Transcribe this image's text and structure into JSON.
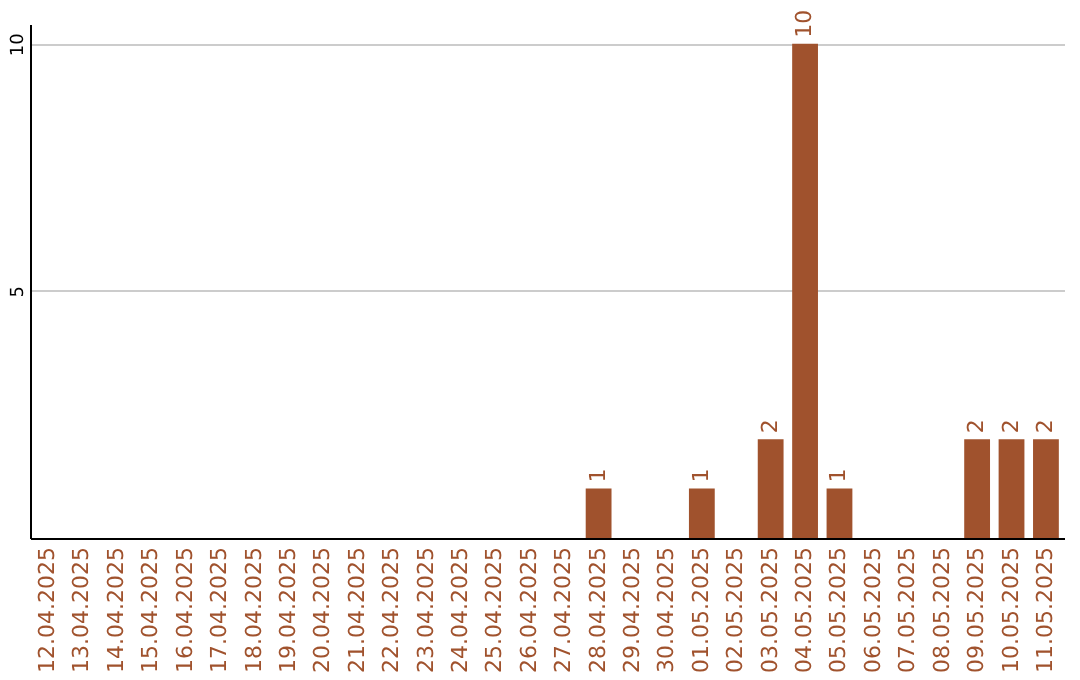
{
  "chart_data": {
    "type": "bar",
    "categories": [
      "12.04.2025",
      "13.04.2025",
      "14.04.2025",
      "15.04.2025",
      "16.04.2025",
      "17.04.2025",
      "18.04.2025",
      "19.04.2025",
      "20.04.2025",
      "21.04.2025",
      "22.04.2025",
      "23.04.2025",
      "24.04.2025",
      "25.04.2025",
      "26.04.2025",
      "27.04.2025",
      "28.04.2025",
      "29.04.2025",
      "30.04.2025",
      "01.05.2025",
      "02.05.2025",
      "03.05.2025",
      "04.05.2025",
      "05.05.2025",
      "06.05.2025",
      "07.05.2025",
      "08.05.2025",
      "09.05.2025",
      "10.05.2025",
      "11.05.2025"
    ],
    "values": [
      0,
      0,
      0,
      0,
      0,
      0,
      0,
      0,
      0,
      0,
      0,
      0,
      0,
      0,
      0,
      0,
      1,
      0,
      0,
      1,
      0,
      2,
      10,
      1,
      0,
      0,
      0,
      2,
      2,
      2
    ],
    "value_labels": [
      null,
      null,
      null,
      null,
      null,
      null,
      null,
      null,
      null,
      null,
      null,
      null,
      null,
      null,
      null,
      null,
      "1",
      null,
      null,
      "1",
      null,
      "2",
      "10",
      "1",
      null,
      null,
      null,
      "2",
      "2",
      "2"
    ],
    "color": "#a0522d",
    "ylim": [
      0,
      10.4
    ],
    "yticks": [
      5,
      10
    ],
    "grid": "y"
  }
}
